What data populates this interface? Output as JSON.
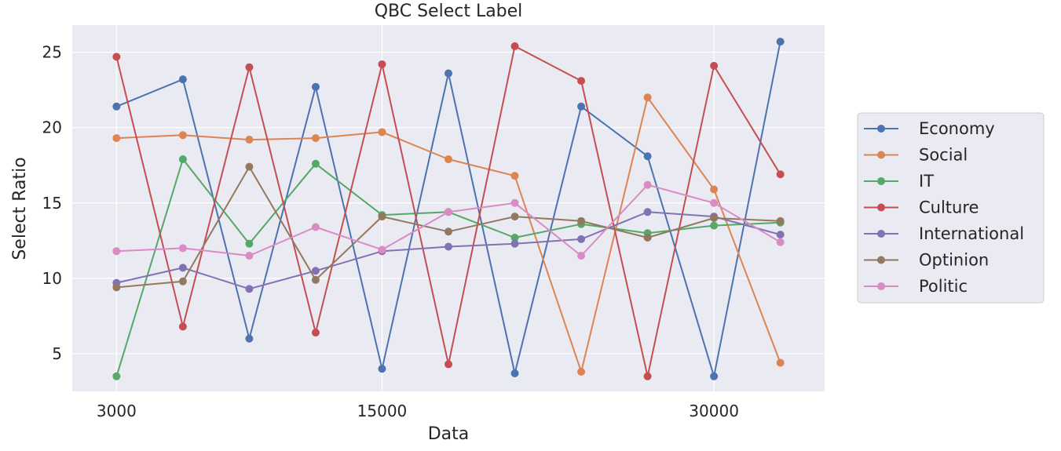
{
  "chart_data": {
    "type": "line",
    "title": "QBC Select Label",
    "xlabel": "Data",
    "ylabel": "Select Ratio",
    "xlim": [
      1000,
      35000
    ],
    "ylim": [
      2.5,
      26.8
    ],
    "xticks": [
      3000,
      15000,
      30000
    ],
    "xtick_labels": [
      "3000",
      "15000",
      "30000"
    ],
    "yticks": [
      5,
      10,
      15,
      20,
      25
    ],
    "ytick_labels": [
      "5",
      "10",
      "15",
      "20",
      "25"
    ],
    "grid": true,
    "legend_position": "right",
    "x": [
      3000,
      6000,
      9000,
      12000,
      15000,
      18000,
      21000,
      24000,
      27000,
      30000,
      33000
    ],
    "series": [
      {
        "name": "Economy",
        "color": "#4c72b0",
        "values": [
          21.4,
          23.2,
          6.0,
          22.7,
          4.0,
          23.6,
          3.7,
          21.4,
          18.1,
          3.5,
          25.7
        ]
      },
      {
        "name": "Social",
        "color": "#dd8452",
        "values": [
          19.3,
          19.5,
          19.2,
          19.3,
          19.7,
          17.9,
          16.8,
          3.8,
          22.0,
          15.9,
          4.4
        ]
      },
      {
        "name": "IT",
        "color": "#55a868",
        "values": [
          3.5,
          17.9,
          12.3,
          17.6,
          14.2,
          14.4,
          12.7,
          13.6,
          13.0,
          13.5,
          13.7
        ]
      },
      {
        "name": "Culture",
        "color": "#c44e52",
        "values": [
          24.7,
          6.8,
          24.0,
          6.4,
          24.2,
          4.3,
          25.4,
          23.1,
          3.5,
          24.1,
          16.9
        ]
      },
      {
        "name": "International",
        "color": "#8172b3",
        "values": [
          9.7,
          10.7,
          9.3,
          10.5,
          11.8,
          12.1,
          12.3,
          12.6,
          14.4,
          14.1,
          12.9
        ]
      },
      {
        "name": "Optinion",
        "color": "#937860",
        "values": [
          9.4,
          9.8,
          17.4,
          9.9,
          14.1,
          13.1,
          14.1,
          13.8,
          12.7,
          14.0,
          13.8
        ]
      },
      {
        "name": "Politic",
        "color": "#da8bc3",
        "values": [
          11.8,
          12.0,
          11.5,
          13.4,
          11.9,
          14.4,
          15.0,
          11.5,
          16.2,
          15.0,
          12.4
        ]
      }
    ]
  },
  "style": {
    "plot_background": "#eaeaf2",
    "grid_color": "#ffffff",
    "legend_border": "#cccccc",
    "legend_background": "#eaeaf2"
  }
}
